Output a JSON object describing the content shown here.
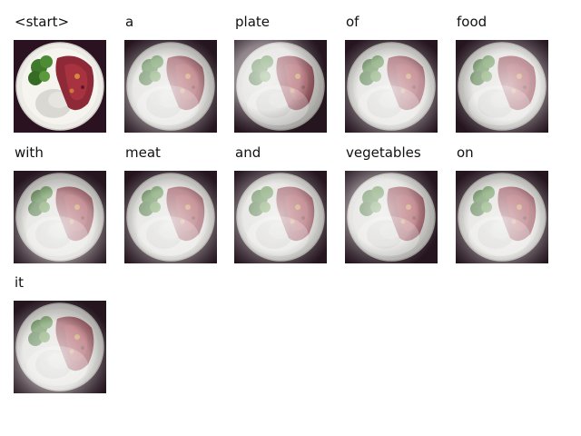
{
  "frames": [
    {
      "word": "<start>",
      "attention": "original",
      "focus": [
        0.5,
        0.5
      ]
    },
    {
      "word": "a",
      "attention": "diffuse",
      "focus": [
        0.45,
        0.55
      ]
    },
    {
      "word": "plate",
      "attention": "diffuse",
      "focus": [
        0.35,
        0.4
      ]
    },
    {
      "word": "of",
      "attention": "diffuse",
      "focus": [
        0.5,
        0.55
      ]
    },
    {
      "word": "food",
      "attention": "diffuse",
      "focus": [
        0.55,
        0.5
      ]
    },
    {
      "word": "with",
      "attention": "diffuse",
      "focus": [
        0.5,
        0.6
      ]
    },
    {
      "word": "meat",
      "attention": "diffuse",
      "focus": [
        0.5,
        0.55
      ]
    },
    {
      "word": "and",
      "attention": "diffuse",
      "focus": [
        0.45,
        0.5
      ]
    },
    {
      "word": "vegetables",
      "attention": "diffuse",
      "focus": [
        0.4,
        0.45
      ]
    },
    {
      "word": "on",
      "attention": "diffuse",
      "focus": [
        0.5,
        0.55
      ]
    },
    {
      "word": "it",
      "attention": "diffuse",
      "focus": [
        0.45,
        0.6
      ]
    }
  ],
  "colors": {
    "background_dark": "#2a1220",
    "plate": "#ecebe6",
    "meat": "#8e2a38",
    "broccoli": "#3f7a2c",
    "rice": "#d9d8d2",
    "overlay": "#f2f2f2"
  }
}
